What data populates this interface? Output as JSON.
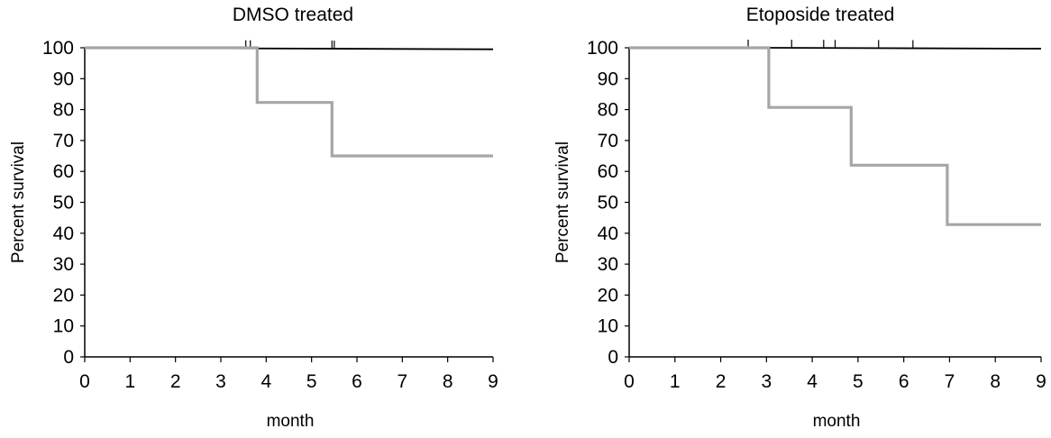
{
  "chart_data": [
    {
      "type": "line",
      "step": true,
      "title": "DMSO treated",
      "xlabel": "month",
      "ylabel": "Percent survival",
      "xlim": [
        0,
        9
      ],
      "ylim": [
        0,
        100
      ],
      "x_ticks": [
        "0",
        "1",
        "2",
        "3",
        "4",
        "5",
        "6",
        "7",
        "8",
        "9"
      ],
      "y_ticks": [
        "0",
        "10",
        "20",
        "30",
        "40",
        "50",
        "60",
        "70",
        "80",
        "90",
        "100"
      ],
      "grid": false,
      "legend": "none",
      "series": [
        {
          "color": "#a6a6a6",
          "points": [
            [
              0,
              100
            ],
            [
              3.8,
              100
            ],
            [
              3.8,
              82.3
            ],
            [
              5.45,
              82.3
            ],
            [
              5.45,
              65
            ],
            [
              9,
              65
            ]
          ]
        },
        {
          "color": "#000000",
          "points": [
            [
              0,
              100
            ],
            [
              9,
              99.5
            ]
          ],
          "censor_ticks": [
            3.55,
            3.65,
            5.45,
            5.5
          ]
        }
      ]
    },
    {
      "type": "line",
      "step": true,
      "title": "Etoposide treated",
      "xlabel": "month",
      "ylabel": "Percent survival",
      "xlim": [
        0,
        9
      ],
      "ylim": [
        0,
        100
      ],
      "x_ticks": [
        "0",
        "1",
        "2",
        "3",
        "4",
        "5",
        "6",
        "7",
        "8",
        "9"
      ],
      "y_ticks": [
        "0",
        "10",
        "20",
        "30",
        "40",
        "50",
        "60",
        "70",
        "80",
        "90",
        "100"
      ],
      "grid": false,
      "legend": "none",
      "series": [
        {
          "color": "#a6a6a6",
          "points": [
            [
              0,
              100
            ],
            [
              3.05,
              100
            ],
            [
              3.05,
              80.7
            ],
            [
              4.85,
              80.7
            ],
            [
              4.85,
              62
            ],
            [
              6.95,
              62
            ],
            [
              6.95,
              42.8
            ],
            [
              9,
              42.8
            ]
          ]
        },
        {
          "color": "#000000",
          "points": [
            [
              3.05,
              100
            ],
            [
              9,
              99.7
            ]
          ],
          "censor_ticks": [
            2.6,
            3.55,
            4.25,
            4.5,
            5.45,
            6.2
          ]
        }
      ]
    }
  ]
}
